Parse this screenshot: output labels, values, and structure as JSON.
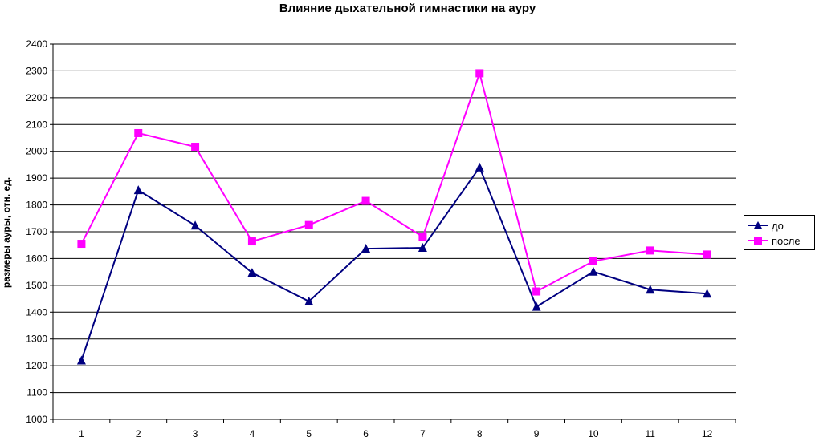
{
  "chart_data": {
    "type": "line",
    "title": "Влияние дыхательной гимнастики на ауру",
    "xlabel": "",
    "ylabel": "размеры ауры, отн. ед.",
    "categories": [
      "1",
      "2",
      "3",
      "4",
      "5",
      "6",
      "7",
      "8",
      "9",
      "10",
      "11",
      "12"
    ],
    "ylim": [
      1000,
      2400
    ],
    "yticks": [
      "1000",
      "1100",
      "1200",
      "1300",
      "1400",
      "1500",
      "1600",
      "1700",
      "1800",
      "1900",
      "2000",
      "2100",
      "2200",
      "2300",
      "2400"
    ],
    "grid": true,
    "legend_position": "right",
    "series": [
      {
        "name": "до",
        "color": "#000080",
        "marker": "triangle",
        "values": [
          1220,
          1855,
          1723,
          1547,
          1440,
          1637,
          1640,
          1940,
          1420,
          1551,
          1484,
          1469
        ]
      },
      {
        "name": "после",
        "color": "#ff00ff",
        "marker": "square",
        "values": [
          1655,
          2068,
          2017,
          1664,
          1725,
          1815,
          1681,
          2291,
          1477,
          1590,
          1630,
          1615
        ]
      }
    ]
  }
}
